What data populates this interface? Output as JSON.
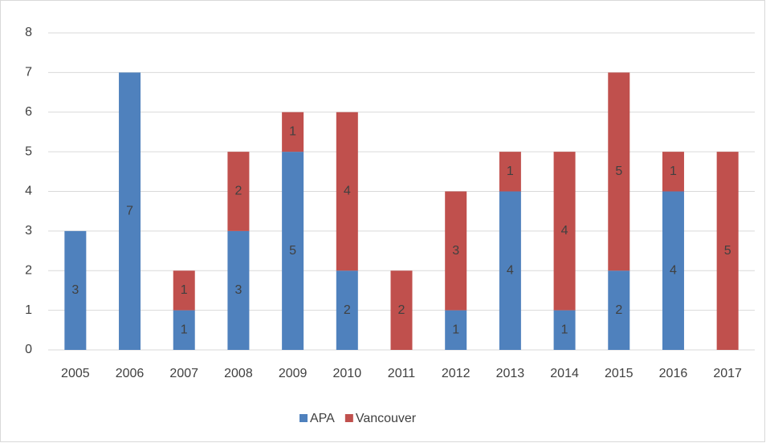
{
  "chart_data": {
    "type": "stacked_bar",
    "categories": [
      "2005",
      "2006",
      "2007",
      "2008",
      "2009",
      "2010",
      "2011",
      "2012",
      "2013",
      "2014",
      "2015",
      "2016",
      "2017"
    ],
    "series": [
      {
        "name": "APA",
        "color": "#4f81bd",
        "values": [
          3,
          7,
          1,
          3,
          5,
          2,
          null,
          1,
          4,
          1,
          2,
          4,
          null
        ]
      },
      {
        "name": "Vancouver",
        "color": "#c0504d",
        "values": [
          null,
          null,
          1,
          2,
          1,
          4,
          2,
          3,
          1,
          4,
          5,
          1,
          5
        ]
      }
    ],
    "ylim": [
      0,
      8
    ],
    "yticks": [
      0,
      1,
      2,
      3,
      4,
      5,
      6,
      7,
      8
    ],
    "grid": true,
    "legend": "bottom"
  }
}
